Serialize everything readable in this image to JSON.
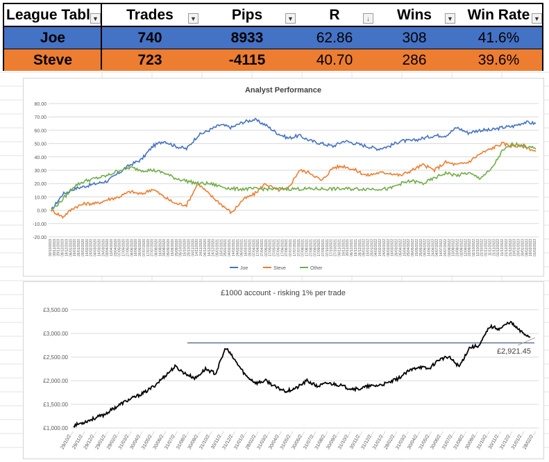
{
  "league_table": {
    "headers": [
      "League Tabl",
      "Trades",
      "Pips",
      "R",
      "Wins",
      "Win Rate"
    ],
    "header_buttons": [
      "▼",
      "▼",
      "▼",
      "↓",
      "▼",
      "▼"
    ],
    "rows": [
      {
        "name": "Joe",
        "trades": "740",
        "pips": "8933",
        "r": "62.86",
        "wins": "308",
        "win_rate": "41.6%",
        "color": "#4472c4"
      },
      {
        "name": "Steve",
        "trades": "723",
        "pips": "-4115",
        "r": "40.70",
        "wins": "286",
        "win_rate": "39.6%",
        "color": "#ed7d31"
      }
    ]
  },
  "chart_data": [
    {
      "type": "line",
      "title": "Analyst Performance",
      "ylim": [
        -20,
        80
      ],
      "yticks": [
        "80.00",
        "70.00",
        "60.00",
        "50.00",
        "40.00",
        "30.00",
        "20.00",
        "10.00",
        "0.00",
        "-10.00",
        "-20.00"
      ],
      "xticks": [
        "30/10/2019",
        "09/11/2019",
        "29/11/2019",
        "09/12/2019",
        "19/12/2019",
        "06/01/2020",
        "16/01/2020",
        "26/01/2020",
        "03/02/2020",
        "14/02/2020",
        "24/02/2020",
        "04/03/2020",
        "14/03/2020",
        "24/03/2020",
        "03/04/2020",
        "13/04/2020",
        "23/04/2020",
        "07/05/2020",
        "17/05/2020",
        "27/05/2020",
        "06/06/2020",
        "16/06/2020",
        "26/06/2020",
        "07/07/2020",
        "17/07/2020",
        "27/07/2020",
        "06/08/2020",
        "16/08/2020",
        "26/08/2020",
        "05/09/2020",
        "15/09/2020",
        "25/09/2020",
        "05/10/2020",
        "15/10/2020",
        "25/10/2020",
        "04/11/2020",
        "14/11/2020",
        "24/11/2020",
        "04/12/2020",
        "14/12/2020",
        "24/12/2020",
        "05/01/2021",
        "15/01/2021",
        "25/01/2021",
        "04/02/2021",
        "14/02/2021",
        "24/02/2021",
        "06/03/2021",
        "16/03/2021",
        "26/03/2021",
        "07/04/2021",
        "17/04/2021",
        "27/04/2021",
        "07/05/2021",
        "17/05/2021",
        "27/05/2021",
        "07/06/2021",
        "17/06/2021",
        "27/06/2021",
        "07/07/2021",
        "17/07/2021",
        "27/07/2021",
        "07/08/2021",
        "17/08/2021",
        "27/08/2021",
        "07/09/2021",
        "17/09/2021",
        "27/09/2021",
        "07/10/2021",
        "17/10/2021",
        "27/10/2021",
        "06/11/2021",
        "16/11/2021",
        "26/11/2021",
        "06/12/2021",
        "16/12/2021",
        "26/12/2021",
        "05/01/2022",
        "15/01/2022",
        "25/01/2022",
        "04/02/2022",
        "14/02/2022",
        "24/02/2022",
        "06/03/2022",
        "16/03/2022",
        "26/03/2022",
        "05/04/2022",
        "15/04/2022",
        "25/04/2022",
        "05/05/2022",
        "15/05/2022",
        "25/05/2022",
        "04/06/2022",
        "14/06/2022",
        "24/06/2022",
        "04/07/2022",
        "14/07/2022",
        "24/07/2022",
        "03/08/2022",
        "13/08/2022",
        "23/08/2022",
        "02/09/2022",
        "12/09/2022",
        "22/09/2022",
        "02/10/2022",
        "12/10/2022",
        "22/10/2022",
        "01/11/2022",
        "11/11/2022",
        "21/11/2022",
        "01/12/2022",
        "11/12/2022",
        "21/12/2022",
        "31/12/2022",
        "10/01/2023",
        "20/01/2023",
        "30/01/2023",
        "09/02/2023",
        "19/02/2023",
        "01/03/2023"
      ],
      "legend": "bottom",
      "series": [
        {
          "name": "Joe",
          "color": "#4472c4",
          "values": [
            0,
            12,
            16,
            18,
            20,
            22,
            28,
            34,
            38,
            48,
            52,
            48,
            46,
            56,
            60,
            64,
            62,
            66,
            68,
            64,
            58,
            54,
            56,
            52,
            50,
            48,
            52,
            50,
            48,
            46,
            48,
            52,
            52,
            54,
            56,
            56,
            62,
            58,
            60,
            60,
            62,
            63,
            66,
            65
          ]
        },
        {
          "name": "Steve",
          "color": "#ed7d31",
          "values": [
            0,
            -5,
            2,
            5,
            5,
            8,
            10,
            14,
            12,
            16,
            10,
            5,
            4,
            20,
            12,
            5,
            -2,
            8,
            12,
            20,
            15,
            16,
            30,
            28,
            22,
            32,
            33,
            30,
            26,
            28,
            28,
            26,
            30,
            34,
            30,
            36,
            34,
            36,
            42,
            46,
            50,
            48,
            48,
            44
          ]
        },
        {
          "name": "Other",
          "color": "#70ad47",
          "values": [
            0,
            8,
            18,
            22,
            24,
            26,
            30,
            32,
            30,
            30,
            28,
            24,
            22,
            20,
            20,
            18,
            16,
            16,
            16,
            16,
            16,
            16,
            16,
            16,
            16,
            16,
            16,
            16,
            16,
            16,
            16,
            20,
            22,
            20,
            24,
            28,
            26,
            28,
            24,
            30,
            44,
            50,
            48,
            46
          ]
        }
      ]
    },
    {
      "type": "line",
      "title": "£1000 account - risking 1% per trade",
      "ylim": [
        1000,
        3500
      ],
      "yticks": [
        "£3,500.00",
        "£3,000.00",
        "£2,500.00",
        "£2,000.00",
        "£1,500.00",
        "£1,000.00"
      ],
      "xticks": [
        "29/10/2…",
        "29/11/2…",
        "29/12/2…",
        "29/01/2…",
        "29/02/2…",
        "31/03/2…",
        "30/04/2…",
        "31/05/2…",
        "30/06/2…",
        "31/07/2…",
        "31/08/2…",
        "30/09/2…",
        "31/10/2…",
        "30/11/2…",
        "31/12/2…",
        "31/01/2…",
        "28/02/2…",
        "31/03/2…",
        "30/04/2…",
        "31/05/2…",
        "30/06/2…",
        "31/07/2…",
        "31/08/2…",
        "30/09/2…",
        "31/10/2…",
        "30/11/2…",
        "31/12/2…",
        "31/01/2…",
        "28/02/2…",
        "31/03/2…",
        "30/04/2…",
        "31/05/2…",
        "30/06/2…",
        "31/07/2…",
        "31/08/2…",
        "30/09/2…",
        "31/10/2…",
        "30/11/2…",
        "31/12/2…",
        "31/01/2…",
        "28/02/2…"
      ],
      "reference_line": 2800,
      "annotation": "£2,921.45",
      "series": [
        {
          "name": "",
          "color": "#000000",
          "values": [
            1050,
            1120,
            1200,
            1280,
            1420,
            1550,
            1650,
            1750,
            1900,
            2100,
            2300,
            2150,
            2050,
            2250,
            2150,
            2700,
            2400,
            2100,
            1950,
            2000,
            1850,
            1780,
            1850,
            2000,
            1880,
            1950,
            1920,
            1850,
            1820,
            1880,
            1900,
            1950,
            2050,
            2200,
            2300,
            2250,
            2450,
            2500,
            2300,
            2700,
            2750,
            3150,
            3100,
            3250,
            3050,
            2920
          ]
        }
      ]
    }
  ]
}
